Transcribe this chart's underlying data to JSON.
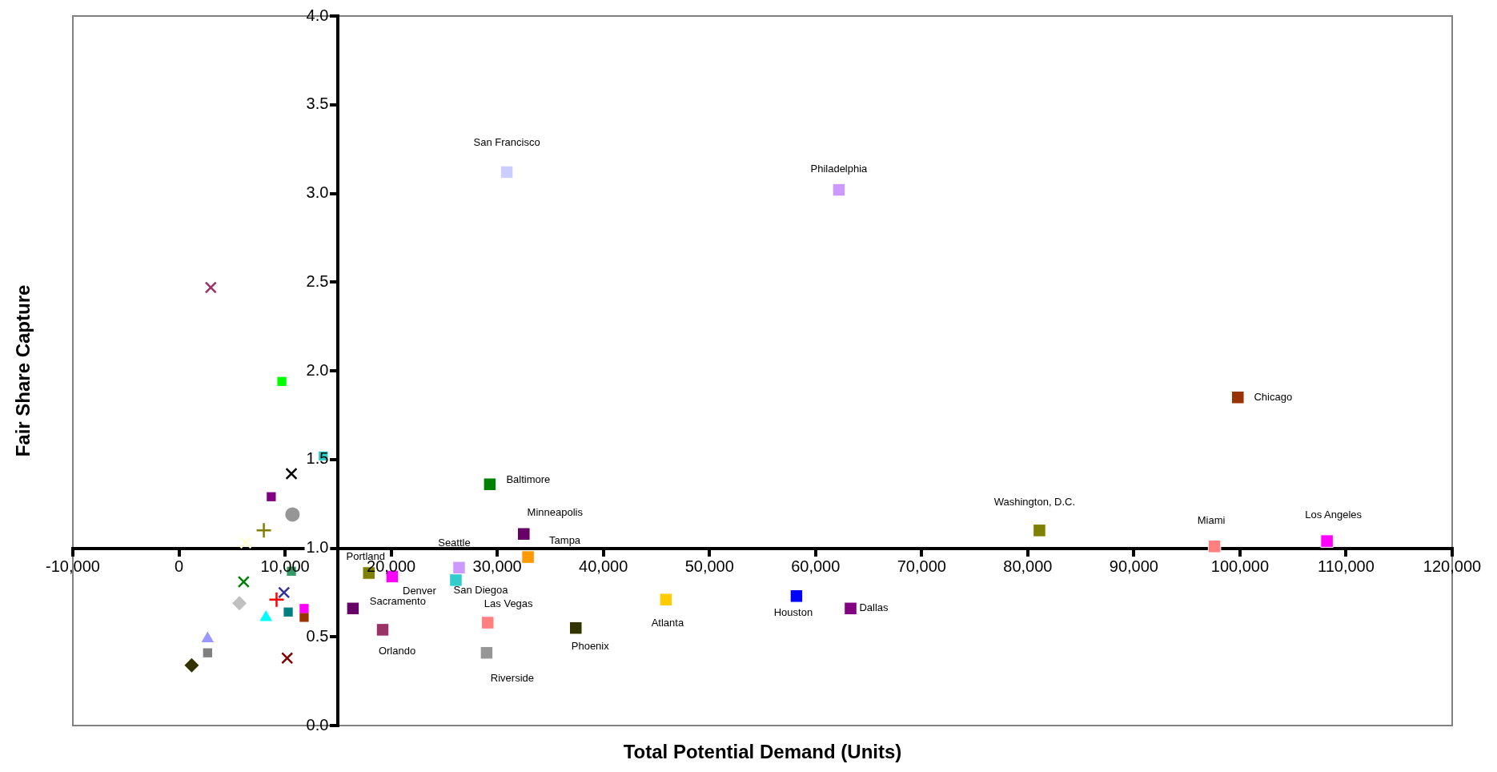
{
  "chart_data": {
    "type": "scatter",
    "xlabel": "Total Potential Demand (Units)",
    "ylabel": "Fair Share Capture",
    "xlim": [
      -10000,
      120000
    ],
    "ylim": [
      0,
      4
    ],
    "xticks": [
      {
        "value": -10000,
        "label": "-10,000"
      },
      0,
      {
        "value": 10000,
        "label": "10,000"
      },
      {
        "value": 20000,
        "label": "20,000"
      },
      {
        "value": 30000,
        "label": "30,000"
      },
      {
        "value": 40000,
        "label": "40,000"
      },
      {
        "value": 50000,
        "label": "50,000"
      },
      {
        "value": 60000,
        "label": "60,000"
      },
      {
        "value": 70000,
        "label": "70,000"
      },
      {
        "value": 80000,
        "label": "80,000"
      },
      {
        "value": 90000,
        "label": "90,000"
      },
      {
        "value": 100000,
        "label": "100,000"
      },
      {
        "value": 110000,
        "label": "110,000"
      },
      {
        "value": 120000,
        "label": "120,000"
      }
    ],
    "yticks": [
      {
        "value": 0,
        "label": "0.0"
      },
      0.5,
      {
        "value": 1,
        "label": "1.0"
      },
      1.5,
      {
        "value": 2,
        "label": "2.0"
      },
      2.5,
      {
        "value": 3,
        "label": "3.0"
      },
      3.5,
      {
        "value": 4,
        "label": "4.0"
      }
    ],
    "grid": false,
    "legend": false,
    "series": [
      {
        "name": "San Francisco",
        "color": "#ccccff",
        "marker": "square",
        "x": [
          30900
        ],
        "values": [
          3.12
        ]
      },
      {
        "name": "Philadelphia",
        "color": "#cc99ff",
        "marker": "square",
        "x": [
          62200
        ],
        "values": [
          3.02
        ]
      },
      {
        "name": "Chicago",
        "color": "#993300",
        "marker": "square",
        "x": [
          99800
        ],
        "values": [
          1.85
        ]
      },
      {
        "name": "Baltimore",
        "color": "#008000",
        "marker": "square",
        "x": [
          29300
        ],
        "values": [
          1.36
        ]
      },
      {
        "name": "Minneapolis",
        "color": "#660066",
        "marker": "square",
        "x": [
          32500
        ],
        "values": [
          1.08
        ]
      },
      {
        "name": "Washington, D.C.",
        "color": "#808000",
        "marker": "square",
        "x": [
          81100
        ],
        "values": [
          1.1
        ]
      },
      {
        "name": "Miami",
        "color": "#ff8080",
        "marker": "square",
        "x": [
          97600
        ],
        "values": [
          1.01
        ]
      },
      {
        "name": "Los Angeles",
        "color": "#ff00ff",
        "marker": "square",
        "x": [
          108200
        ],
        "values": [
          1.04
        ]
      },
      {
        "name": "Seattle",
        "color": "#cc99ff",
        "marker": "square",
        "x": [
          26400
        ],
        "values": [
          0.89
        ]
      },
      {
        "name": "Tampa",
        "color": "#ff9900",
        "marker": "square",
        "x": [
          32900
        ],
        "values": [
          0.95
        ]
      },
      {
        "name": "Portland",
        "color": "#808000",
        "marker": "square",
        "x": [
          17900
        ],
        "values": [
          0.86
        ]
      },
      {
        "name": "Denver",
        "color": "#ff00ff",
        "marker": "square",
        "x": [
          20100
        ],
        "values": [
          0.84
        ]
      },
      {
        "name": "San Diegoa",
        "color": "#33cccc",
        "marker": "square",
        "x": [
          26100
        ],
        "values": [
          0.82
        ]
      },
      {
        "name": "Sacramento",
        "color": "#660066",
        "marker": "square",
        "x": [
          16400
        ],
        "values": [
          0.66
        ]
      },
      {
        "name": "Orlando",
        "color": "#993366",
        "marker": "square",
        "x": [
          19200
        ],
        "values": [
          0.54
        ]
      },
      {
        "name": "Las Vegas",
        "color": "#ff8080",
        "marker": "square",
        "x": [
          29100
        ],
        "values": [
          0.58
        ]
      },
      {
        "name": "Riverside",
        "color": "#969696",
        "marker": "square",
        "x": [
          29000
        ],
        "values": [
          0.41
        ]
      },
      {
        "name": "Phoenix",
        "color": "#333300",
        "marker": "square",
        "x": [
          37400
        ],
        "values": [
          0.55
        ]
      },
      {
        "name": "Atlanta",
        "color": "#ffcc00",
        "marker": "square",
        "x": [
          45900
        ],
        "values": [
          0.71
        ]
      },
      {
        "name": "Houston",
        "color": "#0000ff",
        "marker": "square",
        "x": [
          58200
        ],
        "values": [
          0.73
        ]
      },
      {
        "name": "Dallas",
        "color": "#800080",
        "marker": "square",
        "x": [
          63300
        ],
        "values": [
          0.66
        ]
      },
      {
        "color": "#993366",
        "marker": "cross",
        "x": [
          3000
        ],
        "values": [
          2.47
        ]
      },
      {
        "color": "#00ff00",
        "marker": "square",
        "x": [
          9700
        ],
        "values": [
          1.94
        ]
      },
      {
        "color": "#33cccc",
        "marker": "square",
        "x": [
          13600
        ],
        "values": [
          1.52
        ]
      },
      {
        "color": "#000000",
        "marker": "cross",
        "x": [
          10600
        ],
        "values": [
          1.42
        ]
      },
      {
        "color": "#800080",
        "marker": "square",
        "x": [
          8700
        ],
        "values": [
          1.29
        ]
      },
      {
        "color": "#969696",
        "marker": "circle",
        "x": [
          10700
        ],
        "values": [
          1.19
        ]
      },
      {
        "color": "#808000",
        "marker": "plus",
        "x": [
          8000
        ],
        "values": [
          1.1
        ]
      },
      {
        "color": "#ffffcc",
        "marker": "cross",
        "x": [
          6300
        ],
        "values": [
          1.03
        ]
      },
      {
        "color": "#008000",
        "marker": "cross",
        "x": [
          6100
        ],
        "values": [
          0.81
        ]
      },
      {
        "color": "#339966",
        "marker": "square",
        "x": [
          10600
        ],
        "values": [
          0.87
        ]
      },
      {
        "color": "#333399",
        "marker": "cross",
        "x": [
          9900
        ],
        "values": [
          0.75
        ]
      },
      {
        "color": "#ff0000",
        "marker": "plus",
        "x": [
          9200
        ],
        "values": [
          0.71
        ]
      },
      {
        "color": "#c0c0c0",
        "marker": "diamond",
        "x": [
          5700
        ],
        "values": [
          0.69
        ]
      },
      {
        "color": "#00ffff",
        "marker": "triangle",
        "x": [
          8200
        ],
        "values": [
          0.61
        ]
      },
      {
        "color": "#008080",
        "marker": "square",
        "x": [
          10300
        ],
        "values": [
          0.64
        ]
      },
      {
        "color": "#ff00ff",
        "marker": "square",
        "x": [
          11800
        ],
        "values": [
          0.66
        ]
      },
      {
        "color": "#993300",
        "marker": "square",
        "x": [
          11800
        ],
        "values": [
          0.61
        ]
      },
      {
        "color": "#9999ff",
        "marker": "triangle",
        "x": [
          2700
        ],
        "values": [
          0.49
        ]
      },
      {
        "color": "#808080",
        "marker": "square",
        "x": [
          2700
        ],
        "values": [
          0.41
        ]
      },
      {
        "color": "#333300",
        "marker": "diamond",
        "x": [
          1200
        ],
        "values": [
          0.34
        ]
      },
      {
        "color": "#800000",
        "marker": "cross",
        "x": [
          10200
        ],
        "values": [
          0.38
        ]
      }
    ]
  }
}
